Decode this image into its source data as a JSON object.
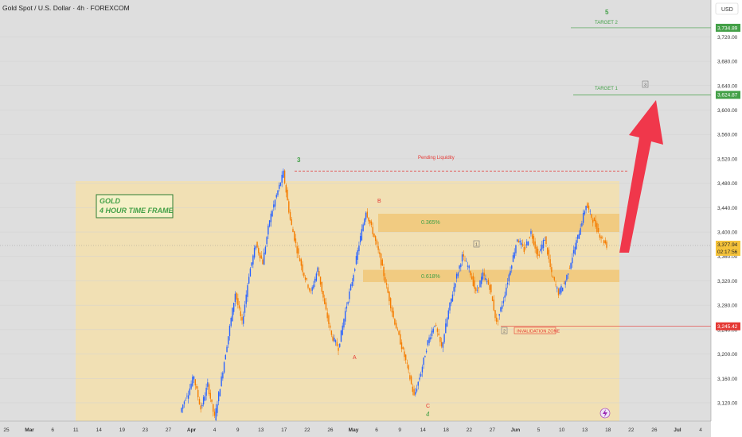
{
  "header": {
    "symbol_title": "Gold Spot / U.S. Dollar · 4h · FOREXCOM",
    "currency": "USD"
  },
  "colors": {
    "bull": "#2962ff",
    "bear": "#f57c00",
    "zone_fill": "#f5deb3",
    "band_fill": "#f0c470",
    "green": "#43a047",
    "red": "#e53935",
    "price_tag": "#f5c33b"
  },
  "chart_data": {
    "type": "candlestick",
    "symbol": "Gold Spot / U.S. Dollar",
    "timeframe": "4h",
    "ylim": [
      3090,
      3770
    ],
    "y_ticks": [
      3120,
      3160,
      3200,
      3240,
      3280,
      3320,
      3360,
      3400,
      3440,
      3480,
      3520,
      3560,
      3600,
      3640,
      3680,
      3720
    ],
    "y_tick_labels": [
      "3,120.00",
      "3,160.00",
      "3,200.00",
      "3,240.00",
      "3,280.00",
      "3,320.00",
      "3,360.00",
      "3,400.00",
      "3,440.00",
      "3,480.00",
      "3,520.00",
      "3,560.00",
      "3,600.00",
      "3,640.00",
      "3,680.00",
      "3,720.00"
    ],
    "x_tick_labels": [
      "25",
      "Mar",
      "6",
      "11",
      "14",
      "19",
      "23",
      "27",
      "Apr",
      "4",
      "9",
      "13",
      "17",
      "22",
      "26",
      "May",
      "6",
      "9",
      "14",
      "18",
      "22",
      "27",
      "Jun",
      "5",
      "10",
      "13",
      "18",
      "22",
      "26",
      "Jul",
      "4"
    ],
    "price_path": [
      [
        3105,
        3135
      ],
      [
        3130,
        3165
      ],
      [
        3160,
        3110
      ],
      [
        3110,
        3150
      ],
      [
        3150,
        3095
      ],
      [
        3095,
        3160
      ],
      [
        3160,
        3230
      ],
      [
        3230,
        3300
      ],
      [
        3300,
        3250
      ],
      [
        3250,
        3330
      ],
      [
        3330,
        3380
      ],
      [
        3380,
        3350
      ],
      [
        3350,
        3420
      ],
      [
        3420,
        3460
      ],
      [
        3460,
        3497
      ],
      [
        3497,
        3420
      ],
      [
        3420,
        3370
      ],
      [
        3370,
        3330
      ],
      [
        3330,
        3300
      ],
      [
        3300,
        3340
      ],
      [
        3340,
        3280
      ],
      [
        3280,
        3230
      ],
      [
        3230,
        3210
      ],
      [
        3210,
        3270
      ],
      [
        3270,
        3320
      ],
      [
        3320,
        3380
      ],
      [
        3380,
        3435
      ],
      [
        3435,
        3400
      ],
      [
        3400,
        3360
      ],
      [
        3360,
        3310
      ],
      [
        3310,
        3260
      ],
      [
        3260,
        3220
      ],
      [
        3220,
        3180
      ],
      [
        3180,
        3130
      ],
      [
        3130,
        3170
      ],
      [
        3170,
        3220
      ],
      [
        3220,
        3250
      ],
      [
        3250,
        3210
      ],
      [
        3210,
        3270
      ],
      [
        3270,
        3320
      ],
      [
        3320,
        3360
      ],
      [
        3360,
        3340
      ],
      [
        3340,
        3300
      ],
      [
        3300,
        3330
      ],
      [
        3330,
        3310
      ],
      [
        3310,
        3250
      ],
      [
        3250,
        3290
      ],
      [
        3290,
        3340
      ],
      [
        3340,
        3390
      ],
      [
        3390,
        3370
      ],
      [
        3370,
        3400
      ],
      [
        3400,
        3360
      ],
      [
        3360,
        3390
      ],
      [
        3390,
        3330
      ],
      [
        3330,
        3300
      ],
      [
        3300,
        3320
      ],
      [
        3320,
        3360
      ],
      [
        3360,
        3400
      ],
      [
        3400,
        3445
      ],
      [
        3445,
        3420
      ],
      [
        3420,
        3395
      ],
      [
        3395,
        3378
      ]
    ],
    "levels": [
      {
        "label": "TARGET 2",
        "price": 3734.89,
        "price_label": "3,734.89",
        "color": "green"
      },
      {
        "label": "TARGET 1",
        "price": 3624.87,
        "price_label": "3,624.87",
        "color": "green"
      },
      {
        "label": "Pending Liquidity",
        "price": 3500,
        "color": "red",
        "style": "dashed"
      },
      {
        "label": "INVALIDATION ZONE",
        "price": 3245.42,
        "price_label": "3,245.42",
        "color": "red"
      }
    ],
    "fib_zones": [
      {
        "label": "0.365%",
        "from": 3400,
        "to": 3430
      },
      {
        "label": "0.618%",
        "from": 3318,
        "to": 3338
      }
    ],
    "current_price": {
      "value": 3377.94,
      "label": "3,377.94",
      "countdown": "02:17:56"
    },
    "wave_labels": [
      {
        "text": "3",
        "color": "green"
      },
      {
        "text": "B",
        "color": "red"
      },
      {
        "text": "A",
        "color": "red"
      },
      {
        "text": "C",
        "color": "red"
      },
      {
        "text": "4",
        "color": "green"
      },
      {
        "text": "5",
        "color": "green"
      },
      {
        "text": "1",
        "color": "gray"
      },
      {
        "text": "2",
        "color": "gray"
      },
      {
        "text": "3",
        "color": "gray"
      }
    ],
    "annotation_box": {
      "line1": "GOLD",
      "line2": "4 HOUR TIME FRAME"
    }
  }
}
